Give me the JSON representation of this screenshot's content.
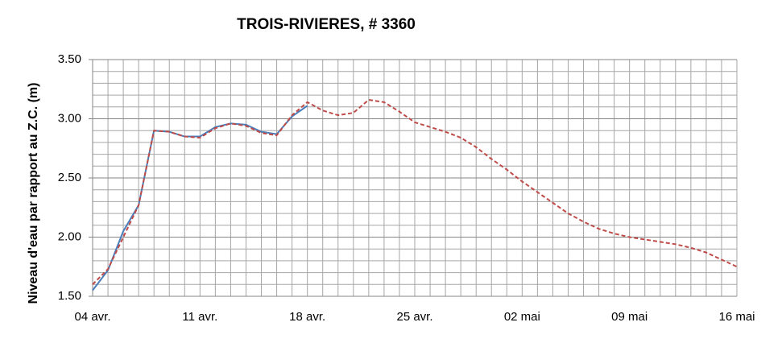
{
  "chart_data": {
    "type": "line",
    "title": "TROIS-RIVIERES, # 3360",
    "y_label": "Niveau d'eau par rapport au Z.C. (m)",
    "categories": [
      "04 avr.",
      null,
      null,
      null,
      null,
      null,
      null,
      "11 avr.",
      null,
      null,
      null,
      null,
      null,
      null,
      "18 avr.",
      null,
      null,
      null,
      null,
      null,
      null,
      "25 avr.",
      null,
      null,
      null,
      null,
      null,
      null,
      "02 mai",
      null,
      null,
      null,
      null,
      null,
      null,
      "09 mai",
      null,
      null,
      null,
      null,
      null,
      null,
      "16 mai"
    ],
    "series": [
      {
        "color": "#4a7ebb",
        "dash": false,
        "values": [
          1.55,
          1.72,
          2.05,
          2.27,
          2.9,
          2.89,
          2.85,
          2.85,
          2.93,
          2.96,
          2.95,
          2.89,
          2.87,
          3.02,
          3.11,
          null,
          null,
          null,
          null,
          null,
          null,
          null,
          null,
          null,
          null,
          null,
          null,
          null,
          null,
          null,
          null,
          null,
          null,
          null,
          null,
          null,
          null,
          null,
          null,
          null,
          null,
          null,
          null
        ]
      },
      {
        "color": "#be4b48",
        "dash": true,
        "values": [
          1.6,
          1.73,
          2.0,
          2.27,
          2.9,
          2.89,
          2.85,
          2.84,
          2.92,
          2.96,
          2.94,
          2.88,
          2.86,
          3.03,
          3.14,
          3.07,
          3.03,
          3.05,
          3.16,
          3.14,
          3.06,
          2.97,
          2.93,
          2.89,
          2.84,
          2.76,
          2.66,
          2.57,
          2.47,
          2.38,
          2.29,
          2.2,
          2.13,
          2.07,
          2.03,
          2.0,
          1.98,
          1.96,
          1.94,
          1.91,
          1.87,
          1.81,
          1.75
        ]
      }
    ],
    "ylim": [
      1.5,
      3.5
    ],
    "yticks": [
      {
        "value": 1.5,
        "label": "1.50"
      },
      {
        "value": 2.0,
        "label": "2.00"
      },
      {
        "value": 2.5,
        "label": "2.50"
      },
      {
        "value": 3.0,
        "label": "3.00"
      },
      {
        "value": 3.5,
        "label": "3.50"
      }
    ],
    "minor_yticks": [
      1.6,
      1.7,
      1.8,
      1.9,
      2.1,
      2.2,
      2.3,
      2.4,
      2.6,
      2.7,
      2.8,
      2.9,
      3.1,
      3.2,
      3.3,
      3.4
    ],
    "grid": true
  }
}
